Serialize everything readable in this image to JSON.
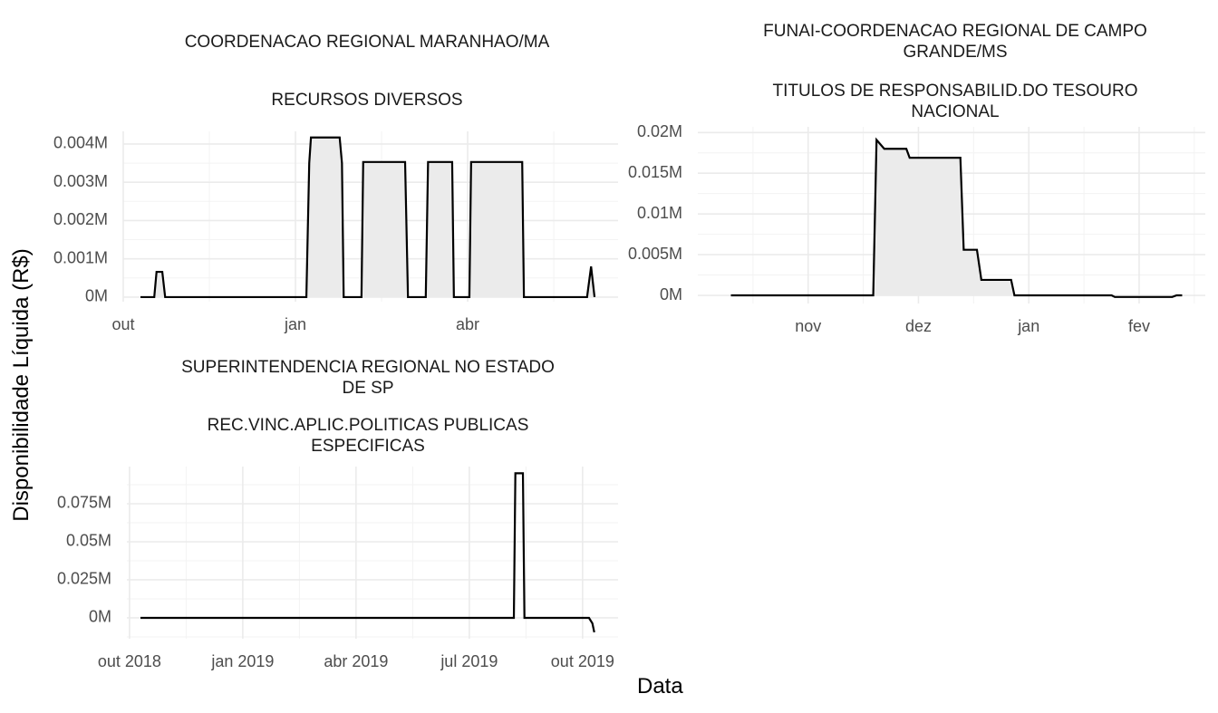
{
  "ylabel": "Disponibilidade Líquida (R$)",
  "xlabel": "Data",
  "chart_data": [
    {
      "type": "area",
      "title": "COORDENACAO REGIONAL MARANHAO/MA",
      "subtitle": "RECURSOS DIVERSOS",
      "color": "#000000",
      "fill": "#ebebeb",
      "grid": true,
      "x": [
        0.3,
        0.54,
        0.58,
        0.68,
        0.73,
        3.19,
        3.24,
        3.27,
        3.77,
        3.81,
        3.84,
        4.15,
        4.18,
        4.91,
        4.96,
        5.27,
        5.31,
        5.73,
        5.76,
        6.03,
        6.06,
        6.95,
        6.98,
        8.08,
        8.15,
        8.21
      ],
      "values": [
        0,
        0,
        0.00066,
        0.00066,
        0,
        0,
        0.0035,
        0.00417,
        0.00417,
        0.0035,
        0,
        0,
        0.00353,
        0.00353,
        0,
        0,
        0.00353,
        0.00353,
        0,
        0,
        0.00353,
        0.00353,
        0,
        0,
        0.0008,
        0
      ],
      "xlim": [
        0,
        8.62
      ],
      "xticks": [
        {
          "value": 0,
          "label": "out"
        },
        {
          "value": 3,
          "label": "jan"
        },
        {
          "value": 6,
          "label": "abr"
        }
      ],
      "ylim": [
        -0.00012,
        0.00433
      ],
      "yticks": [
        {
          "value": 0,
          "label": "0M"
        },
        {
          "value": 0.001,
          "label": "0.001M"
        },
        {
          "value": 0.002,
          "label": "0.002M"
        },
        {
          "value": 0.003,
          "label": "0.003M"
        },
        {
          "value": 0.004,
          "label": "0.004M"
        }
      ]
    },
    {
      "type": "area",
      "title": "FUNAI-COORDENACAO REGIONAL DE CAMPO\nGRANDE/MS",
      "subtitle": "TITULOS DE RESPONSABILID.DO TESOURO\nNACIONAL",
      "color": "#000000",
      "fill": "#ebebeb",
      "grid": true,
      "x": [
        -0.7,
        0.59,
        0.62,
        0.69,
        0.89,
        0.92,
        1.38,
        1.41,
        1.53,
        1.57,
        1.84,
        1.87,
        2.75,
        2.78,
        3.3,
        3.34,
        3.39
      ],
      "values": [
        0,
        0,
        0.0191,
        0.018,
        0.018,
        0.0169,
        0.0169,
        0.0056,
        0.0056,
        0.0019,
        0.0019,
        0,
        0,
        -0.0002,
        -0.0002,
        0,
        0
      ],
      "xlim": [
        -1,
        3.6
      ],
      "xticks": [
        {
          "value": 0,
          "label": "nov"
        },
        {
          "value": 1,
          "label": "dez"
        },
        {
          "value": 2,
          "label": "jan"
        },
        {
          "value": 3,
          "label": "fev"
        }
      ],
      "ylim": [
        -0.001,
        0.0207
      ],
      "yticks": [
        {
          "value": 0,
          "label": "0M"
        },
        {
          "value": 0.005,
          "label": "0.005M"
        },
        {
          "value": 0.01,
          "label": "0.01M"
        },
        {
          "value": 0.015,
          "label": "0.015M"
        },
        {
          "value": 0.02,
          "label": "0.02M"
        }
      ]
    },
    {
      "type": "line",
      "title": "SUPERINTENDENCIA REGIONAL NO ESTADO\nDE SP",
      "subtitle": "REC.VINC.APLIC.POLITICAS PUBLICAS\nESPECIFICAS",
      "color": "#000000",
      "grid": true,
      "x": [
        0.29,
        10.18,
        10.22,
        10.42,
        10.46,
        12.17,
        12.26,
        12.31
      ],
      "values": [
        0,
        0,
        0.095,
        0.095,
        0,
        0,
        -0.0036,
        -0.0095
      ],
      "xlim": [
        -0.07,
        12.94
      ],
      "xticks": [
        {
          "value": 0,
          "label": "out 2018"
        },
        {
          "value": 3,
          "label": "jan 2019"
        },
        {
          "value": 6,
          "label": "abr 2019"
        },
        {
          "value": 9,
          "label": "jul 2019"
        },
        {
          "value": 12,
          "label": "out 2019"
        }
      ],
      "ylim": [
        -0.0137,
        0.0994
      ],
      "yticks": [
        {
          "value": 0,
          "label": "0M"
        },
        {
          "value": 0.025,
          "label": "0.025M"
        },
        {
          "value": 0.05,
          "label": "0.05M"
        },
        {
          "value": 0.075,
          "label": "0.075M"
        }
      ]
    }
  ]
}
